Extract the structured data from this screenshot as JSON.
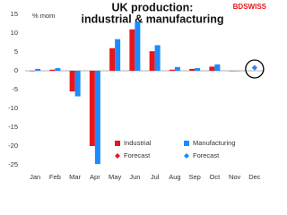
{
  "chart_data": {
    "type": "bar",
    "title": [
      "UK production:",
      "industrial & manufacturing"
    ],
    "brand": "BDSWISS",
    "y_label": "% mom",
    "categories": [
      "Jan",
      "Feb",
      "Mar",
      "Apr",
      "May",
      "Jun",
      "Jul",
      "Aug",
      "Sep",
      "Oct",
      "Nov",
      "Dec"
    ],
    "series": [
      {
        "name": "Industrial",
        "color": "#e8161b",
        "kind": "bar",
        "values": [
          0,
          0.3,
          -5.5,
          -20,
          6,
          11,
          5.2,
          0.3,
          0.5,
          1.1,
          0,
          null
        ]
      },
      {
        "name": "Manufacturing",
        "color": "#1a8cff",
        "kind": "bar",
        "values": [
          0.5,
          0.7,
          -6.8,
          -24.8,
          8.4,
          13,
          6.8,
          1,
          0.7,
          1.7,
          0,
          null
        ]
      },
      {
        "name": "Forecast",
        "color": "#e8161b",
        "kind": "marker",
        "values": [
          null,
          null,
          null,
          null,
          null,
          null,
          null,
          null,
          null,
          null,
          null,
          0.8
        ]
      },
      {
        "name": "Forecast",
        "color": "#1a8cff",
        "kind": "marker",
        "values": [
          null,
          null,
          null,
          null,
          null,
          null,
          null,
          null,
          null,
          null,
          null,
          0.8
        ]
      }
    ],
    "ylim": [
      -25,
      15
    ],
    "yticks": [
      -25,
      -20,
      -15,
      -10,
      -5,
      0,
      5,
      10,
      15
    ],
    "highlight": "Dec"
  }
}
